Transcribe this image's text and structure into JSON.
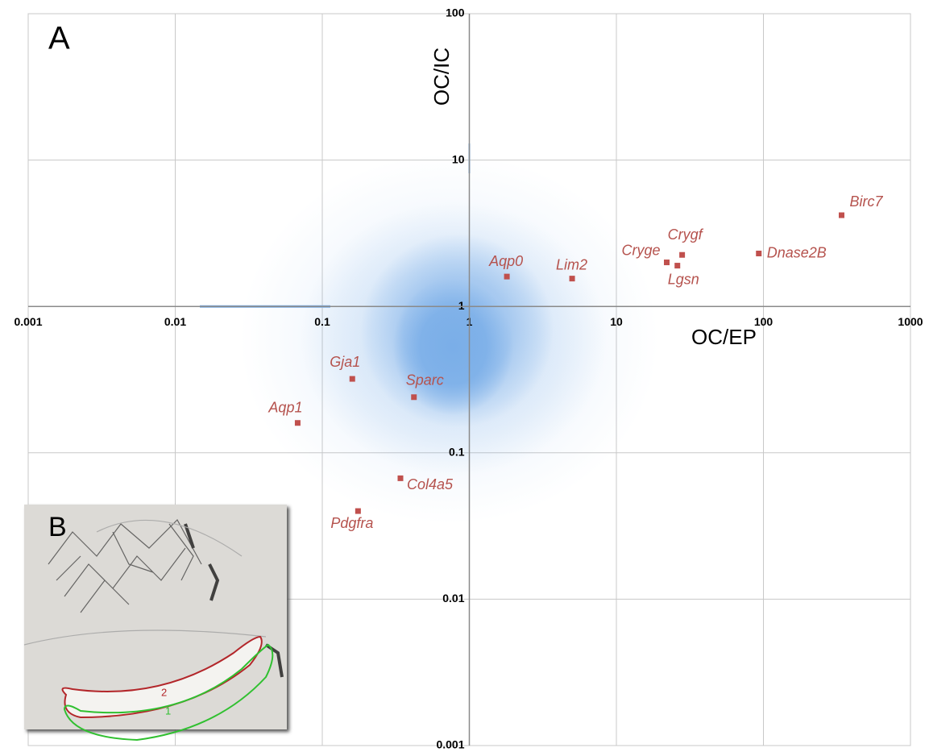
{
  "chart_data": {
    "type": "scatter",
    "panel_label": "A",
    "xlabel": "OC/EP",
    "ylabel": "OC/IC",
    "xlog": true,
    "ylog": true,
    "grid": true,
    "xlim": [
      0.001,
      1000
    ],
    "ylim": [
      0.001,
      100
    ],
    "xticks": [
      0.001,
      0.01,
      0.1,
      1,
      10,
      100,
      1000
    ],
    "yticks": [
      0.001,
      0.01,
      0.1,
      1,
      10,
      100
    ],
    "cloud_color": "#7aaee8",
    "highlighted": {
      "color": "#c0504d",
      "labels": [
        "Birc7",
        "Dnase2B",
        "Crygf",
        "Cryge",
        "Lgsn",
        "Lim2",
        "Aqp0",
        "Gja1",
        "Sparc",
        "Aqp1",
        "Col4a5",
        "Pdgfra"
      ],
      "x": [
        340,
        93,
        28,
        22,
        26,
        5,
        1.8,
        0.16,
        0.42,
        0.068,
        0.34,
        0.175
      ],
      "y": [
        4.2,
        2.3,
        2.25,
        2.0,
        1.9,
        1.55,
        1.6,
        0.32,
        0.24,
        0.16,
        0.067,
        0.04
      ]
    }
  },
  "inset": {
    "panel_label": "B",
    "region_labels": [
      "2",
      "1"
    ]
  }
}
